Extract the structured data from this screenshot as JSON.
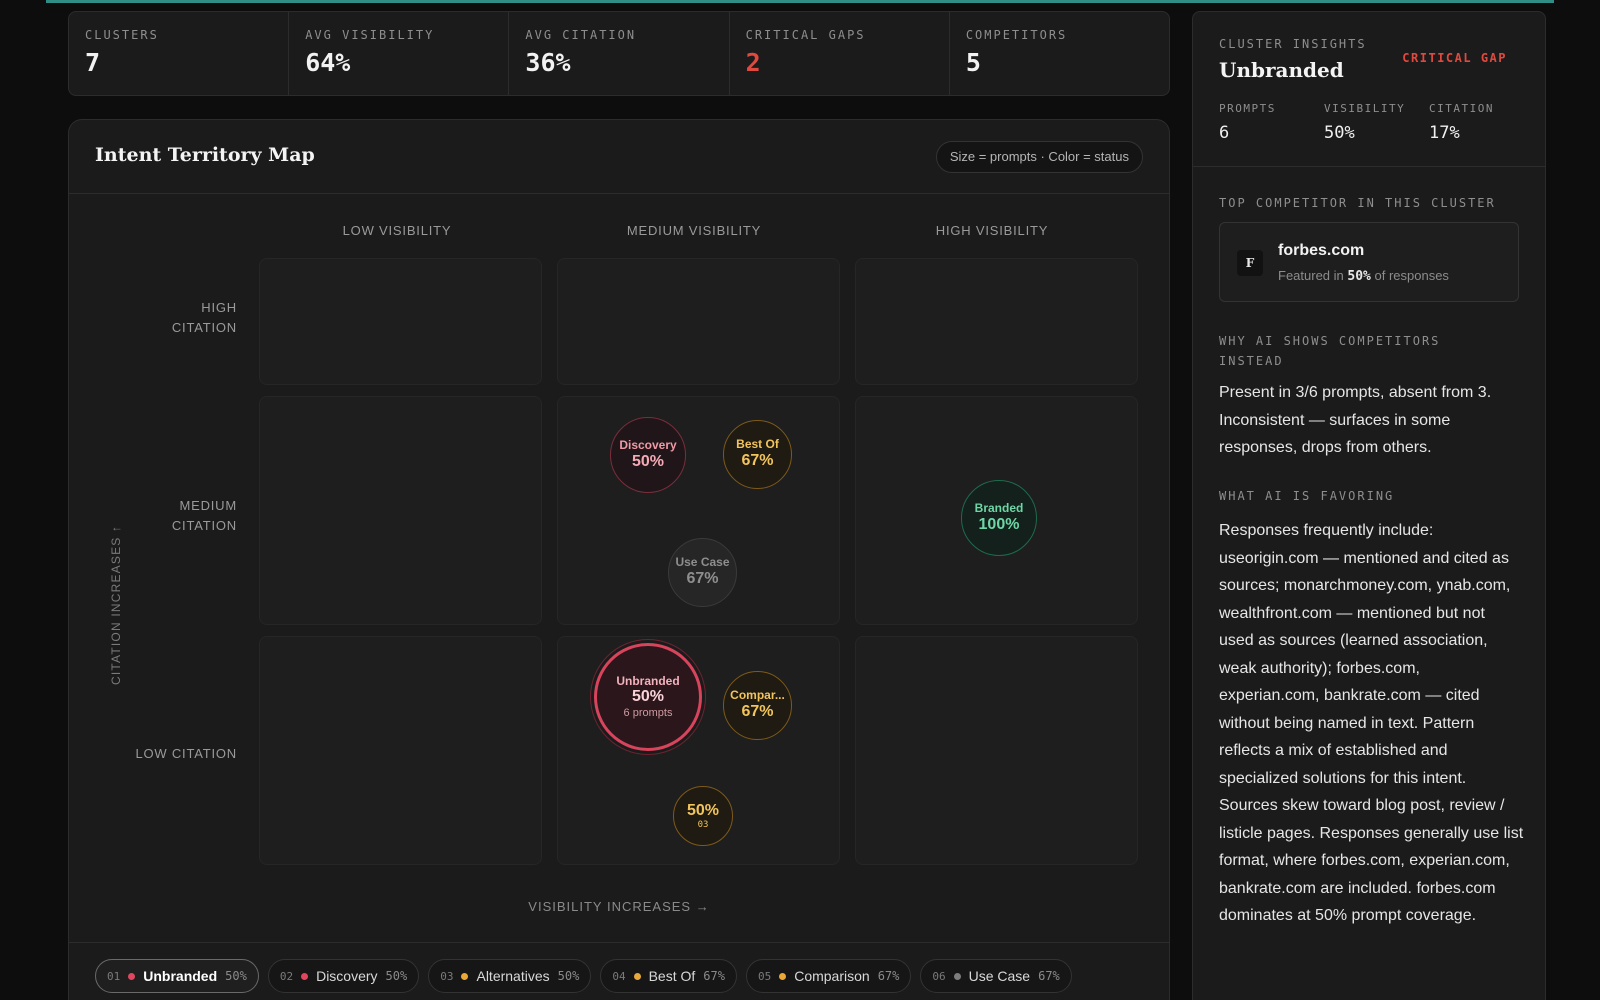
{
  "stats": [
    {
      "label": "CLUSTERS",
      "value": "7"
    },
    {
      "label": "AVG VISIBILITY",
      "value": "64%"
    },
    {
      "label": "AVG CITATION",
      "value": "36%"
    },
    {
      "label": "CRITICAL GAPS",
      "value": "2"
    },
    {
      "label": "COMPETITORS",
      "value": "5"
    }
  ],
  "map": {
    "title": "Intent Territory Map",
    "hint": "Size = prompts · Color = status",
    "columns": [
      "LOW VISIBILITY",
      "MEDIUM VISIBILITY",
      "HIGH VISIBILITY"
    ],
    "rows": {
      "high": [
        "HIGH",
        "CITATION"
      ],
      "medium": [
        "MEDIUM",
        "CITATION"
      ],
      "low": "LOW CITATION"
    },
    "y_axis": "CITATION INCREASES ↑",
    "x_axis": "VISIBILITY INCREASES →",
    "bubbles": {
      "discovery": {
        "name": "Discovery",
        "pct": "50%"
      },
      "best_of": {
        "name": "Best Of",
        "pct": "67%"
      },
      "use_case": {
        "name": "Use Case",
        "pct": "67%"
      },
      "branded": {
        "name": "Branded",
        "pct": "100%"
      },
      "unbranded": {
        "name": "Unbranded",
        "pct": "50%",
        "sub": "6 prompts"
      },
      "comparison": {
        "name": "Compar...",
        "pct": "67%"
      },
      "alternatives": {
        "pct": "50%",
        "id": "03"
      }
    }
  },
  "legend": [
    {
      "num": "01",
      "label": "Unbranded",
      "pct": "50%",
      "color": "#e0475e"
    },
    {
      "num": "02",
      "label": "Discovery",
      "pct": "50%",
      "color": "#e0475e"
    },
    {
      "num": "03",
      "label": "Alternatives",
      "pct": "50%",
      "color": "#e9a93a"
    },
    {
      "num": "04",
      "label": "Best Of",
      "pct": "67%",
      "color": "#e9a93a"
    },
    {
      "num": "05",
      "label": "Comparison",
      "pct": "67%",
      "color": "#e9a93a"
    },
    {
      "num": "06",
      "label": "Use Case",
      "pct": "67%",
      "color": "#7d7d7d"
    }
  ],
  "insights": {
    "kicker": "CLUSTER INSIGHTS",
    "name": "Unbranded",
    "badge": "CRITICAL GAP",
    "metrics": [
      {
        "label": "PROMPTS",
        "value": "6"
      },
      {
        "label": "VISIBILITY",
        "value": "50%"
      },
      {
        "label": "CITATION",
        "value": "17%"
      }
    ],
    "top_competitor_label": "TOP COMPETITOR IN THIS CLUSTER",
    "competitor": {
      "initial": "F",
      "name": "forbes.com",
      "prefix": "Featured in",
      "share": "50%",
      "suffix": "of responses"
    },
    "why_label": [
      "WHY AI SHOWS COMPETITORS",
      "INSTEAD"
    ],
    "why_text": "Present in 3/6 prompts, absent from 3. Inconsistent — surfaces in some responses, drops from others.",
    "favoring_label": "WHAT AI IS FAVORING",
    "favoring_text": "Responses frequently include: useorigin.com — mentioned and cited as sources; monarchmoney.com, ynab.com, wealthfront.com — mentioned but not used as sources (learned association, weak authority); forbes.com, experian.com, bankrate.com — cited without being named in text. Pattern reflects a mix of established and specialized solutions for this intent. Sources skew toward blog post, review / listicle pages. Responses generally use list format, where forbes.com, experian.com, bankrate.com are included. forbes.com dominates at 50% prompt coverage."
  },
  "colors": {
    "accent": "#2f8f86",
    "critical": "#e0493e",
    "red": "#e0475e",
    "amber": "#e9a93a",
    "green": "#3fbf8a"
  }
}
